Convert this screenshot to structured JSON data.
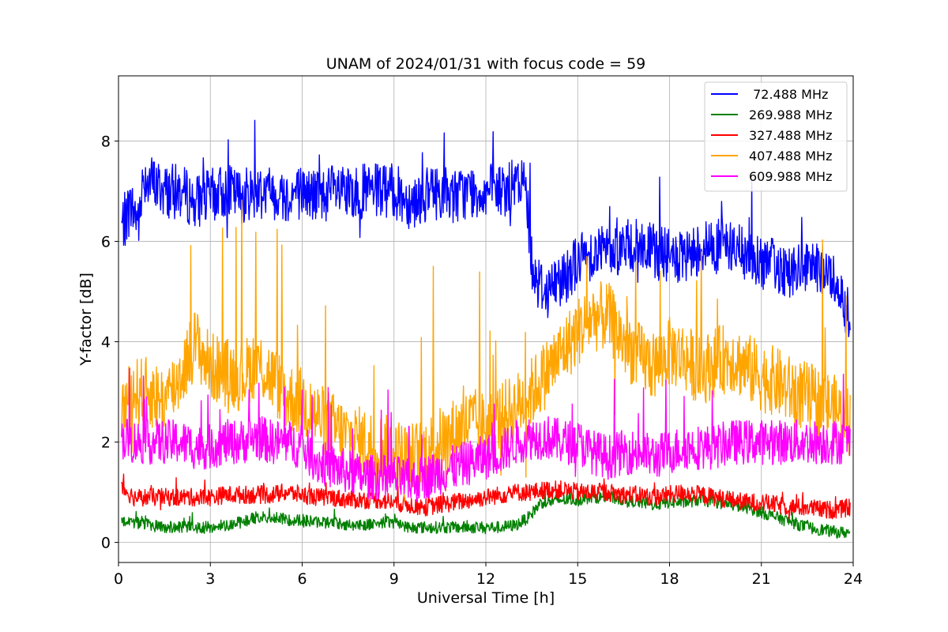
{
  "chart_data": {
    "type": "line",
    "title": "UNAM of 2024/01/31 with focus code = 59",
    "xlabel": "Universal Time [h]",
    "ylabel": "Y-factor [dB]",
    "xlim": [
      0,
      24
    ],
    "ylim": [
      -0.4,
      9.3
    ],
    "xticks": [
      0,
      3,
      6,
      9,
      12,
      15,
      18,
      21,
      24
    ],
    "yticks": [
      0,
      2,
      4,
      6,
      8
    ],
    "grid": true,
    "legend_position": "top-right",
    "series": [
      {
        "name": " 72.488 MHz",
        "color": "#0000ff",
        "x": [
          0.1,
          0.4,
          0.7,
          0.8,
          1.5,
          2,
          2.5,
          3,
          3.5,
          4,
          4.5,
          5,
          5.5,
          6,
          6.5,
          7,
          7.5,
          8,
          8.5,
          9,
          9.5,
          10,
          10.5,
          11,
          11.5,
          12,
          12.5,
          13,
          13.3,
          13.5,
          13.7,
          14,
          14.5,
          15,
          15.5,
          16,
          16.5,
          17,
          17.5,
          18,
          18.5,
          19,
          19.5,
          20,
          20.5,
          21,
          21.5,
          22,
          22.5,
          23,
          23.5,
          23.9
        ],
        "y": [
          6.3,
          6.7,
          6.4,
          7.3,
          7.0,
          7.0,
          6.8,
          6.9,
          7.0,
          6.9,
          7.0,
          7.0,
          6.9,
          7.0,
          6.9,
          7.0,
          6.9,
          7.0,
          7.0,
          7.0,
          6.8,
          6.9,
          7.0,
          6.9,
          7.0,
          7.0,
          7.0,
          7.1,
          7.2,
          5.6,
          5.2,
          5.0,
          5.3,
          5.6,
          5.8,
          5.8,
          5.9,
          5.9,
          5.8,
          5.7,
          5.6,
          5.9,
          5.9,
          5.9,
          5.7,
          5.6,
          5.5,
          5.4,
          5.4,
          5.4,
          5.2,
          4.4
        ]
      },
      {
        "name": "269.988 MHz",
        "color": "#008000",
        "x": [
          0.1,
          0.5,
          1,
          1.5,
          2,
          2.5,
          3,
          3.5,
          4,
          4.5,
          5,
          5.5,
          6,
          6.5,
          7,
          7.5,
          8,
          8.5,
          9,
          9.5,
          10,
          10.5,
          11,
          11.5,
          12,
          12.5,
          13,
          13.4,
          13.8,
          14,
          14.5,
          15,
          15.5,
          16,
          16.5,
          17,
          17.5,
          18,
          18.5,
          19,
          19.5,
          20,
          20.5,
          21,
          21.5,
          22,
          22.5,
          23,
          23.5,
          23.9
        ],
        "y": [
          0.45,
          0.4,
          0.35,
          0.3,
          0.3,
          0.3,
          0.3,
          0.35,
          0.4,
          0.5,
          0.5,
          0.45,
          0.45,
          0.4,
          0.4,
          0.35,
          0.35,
          0.4,
          0.4,
          0.3,
          0.3,
          0.3,
          0.3,
          0.3,
          0.3,
          0.3,
          0.35,
          0.5,
          0.8,
          0.8,
          0.85,
          0.85,
          0.9,
          0.9,
          0.85,
          0.8,
          0.75,
          0.8,
          0.8,
          0.85,
          0.8,
          0.75,
          0.7,
          0.6,
          0.5,
          0.4,
          0.3,
          0.25,
          0.2,
          0.2
        ]
      },
      {
        "name": "327.488 MHz",
        "color": "#ff0000",
        "x": [
          0.1,
          0.5,
          1,
          1.5,
          2,
          2.5,
          3,
          3.5,
          4,
          4.5,
          5,
          5.5,
          6,
          6.5,
          7,
          7.5,
          8,
          8.5,
          9,
          9.5,
          10,
          10.5,
          11,
          11.5,
          12,
          12.5,
          13,
          13.5,
          14,
          14.5,
          15,
          15.5,
          16,
          16.5,
          17,
          17.5,
          18,
          18.5,
          19,
          19.5,
          20,
          20.5,
          21,
          21.5,
          22,
          22.5,
          23,
          23.5,
          23.9
        ],
        "y": [
          1.1,
          0.9,
          0.9,
          0.9,
          0.9,
          0.9,
          0.9,
          0.95,
          0.95,
          0.95,
          0.95,
          1.0,
          0.95,
          0.9,
          0.9,
          0.85,
          0.85,
          0.85,
          0.8,
          0.75,
          0.7,
          0.75,
          0.8,
          0.85,
          0.9,
          0.95,
          1.0,
          1.0,
          1.05,
          1.05,
          1.0,
          1.0,
          1.0,
          0.95,
          0.95,
          0.9,
          0.95,
          1.0,
          0.95,
          0.9,
          0.85,
          0.8,
          0.8,
          0.75,
          0.7,
          0.7,
          0.65,
          0.65,
          0.7
        ]
      },
      {
        "name": "407.488 MHz",
        "color": "#ffa500",
        "x": [
          0.1,
          0.5,
          1,
          1.5,
          2,
          2.5,
          3,
          3.5,
          4,
          4.5,
          5,
          5.5,
          6,
          6.5,
          7,
          7.5,
          8,
          8.5,
          9,
          9.5,
          10,
          10.5,
          11,
          11.5,
          12,
          12.5,
          13,
          13.5,
          14,
          14.5,
          15,
          15.5,
          16,
          16.5,
          17,
          17.5,
          18,
          18.5,
          19,
          19.5,
          20,
          20.5,
          21,
          21.5,
          22,
          22.5,
          23,
          23.5,
          23.9
        ],
        "y": [
          2.6,
          3.0,
          3.0,
          2.8,
          3.3,
          4.0,
          3.5,
          3.4,
          3.3,
          3.6,
          3.3,
          2.9,
          2.8,
          2.5,
          2.3,
          2.1,
          2.0,
          1.9,
          1.8,
          1.7,
          1.8,
          2.0,
          2.2,
          2.4,
          2.3,
          2.5,
          2.7,
          3.0,
          3.4,
          3.8,
          4.2,
          4.5,
          4.5,
          4.0,
          3.7,
          3.5,
          3.8,
          3.7,
          3.4,
          3.6,
          3.7,
          3.5,
          3.3,
          3.2,
          3.0,
          2.9,
          2.8,
          2.6,
          2.4
        ]
      },
      {
        "name": "609.988 MHz",
        "color": "#ff00ff",
        "x": [
          0.1,
          0.5,
          1,
          1.5,
          2,
          2.5,
          3,
          3.5,
          4,
          4.5,
          5,
          5.5,
          6,
          6.5,
          7,
          7.5,
          8,
          8.5,
          9,
          9.5,
          10,
          10.5,
          11,
          11.5,
          12,
          12.5,
          13,
          13.5,
          14,
          14.5,
          15,
          15.5,
          16,
          16.5,
          17,
          17.5,
          18,
          18.5,
          19,
          19.5,
          20,
          20.5,
          21,
          21.5,
          22,
          22.5,
          23,
          23.5,
          23.9
        ],
        "y": [
          2.1,
          2.0,
          2.0,
          2.0,
          2.0,
          1.9,
          1.9,
          2.0,
          2.0,
          2.1,
          2.0,
          2.0,
          1.9,
          1.6,
          1.5,
          1.4,
          1.3,
          1.3,
          1.3,
          1.2,
          1.3,
          1.4,
          1.5,
          1.6,
          1.7,
          1.8,
          2.0,
          2.1,
          2.1,
          2.0,
          2.0,
          1.8,
          1.7,
          1.8,
          1.8,
          1.7,
          1.8,
          1.9,
          1.9,
          1.9,
          2.0,
          2.0,
          2.0,
          2.0,
          2.0,
          2.0,
          2.0,
          2.0,
          2.0
        ]
      }
    ]
  }
}
